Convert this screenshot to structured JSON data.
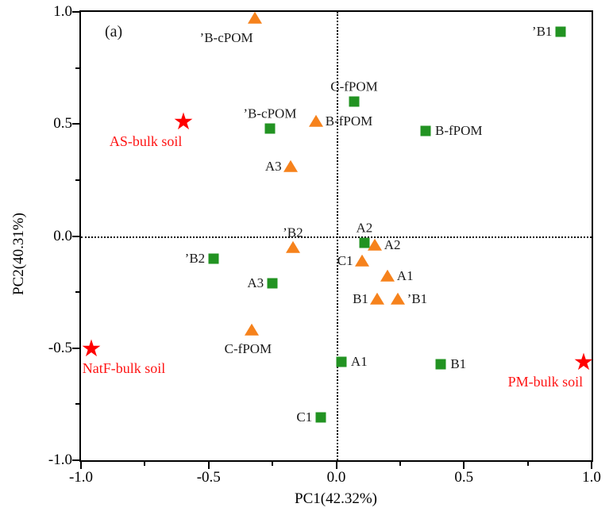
{
  "figure": {
    "panel_label": "(a)"
  },
  "colors": {
    "squares": "#229322",
    "triangles": "#f6821c",
    "stars": "#ff0000",
    "star_labels": "#ff1414",
    "point_labels": "#1a1a1a",
    "axis": "#000000"
  },
  "chart_data": {
    "type": "scatter",
    "title": "",
    "xlabel": "PC1(42.32%)",
    "ylabel": "PC2(40.31%)",
    "xlim": [
      -1.0,
      1.0
    ],
    "ylim": [
      -1.0,
      1.0
    ],
    "grid": false,
    "legend": "none",
    "x_ticks": {
      "values": [
        -1.0,
        -0.5,
        0.0,
        0.5,
        1.0
      ],
      "labels": [
        "-1.0",
        "-0.5",
        "0.0",
        "0.5",
        "1.0"
      ]
    },
    "y_ticks": {
      "values": [
        1.0,
        0.5,
        0.0,
        -0.5,
        -1.0
      ],
      "labels": [
        "1.0",
        "0.5",
        "0.0",
        "-0.5",
        "-1.0"
      ]
    },
    "x_minor_ticks": [
      -0.75,
      -0.25,
      0.25,
      0.75
    ],
    "y_minor_ticks": [
      -0.75,
      -0.25,
      0.25,
      0.75
    ],
    "reference_lines": {
      "vertical_x": 0.0,
      "horizontal_y": 0.0,
      "style": "dotted"
    },
    "series": [
      {
        "name": "green-squares",
        "marker": "square",
        "color": "#229322",
        "points": [
          {
            "x": 0.88,
            "y": 0.91,
            "label": "’B1",
            "label_pos": "left"
          },
          {
            "x": 0.07,
            "y": 0.6,
            "label": "C-fPOM",
            "label_pos": "above"
          },
          {
            "x": 0.35,
            "y": 0.47,
            "label": "B-fPOM",
            "label_pos": "right"
          },
          {
            "x": -0.26,
            "y": 0.48,
            "label": "’B-cPOM",
            "label_pos": "above"
          },
          {
            "x": 0.11,
            "y": -0.03,
            "label": "A2",
            "label_pos": "above"
          },
          {
            "x": -0.48,
            "y": -0.1,
            "label": "’B2",
            "label_pos": "left"
          },
          {
            "x": -0.25,
            "y": -0.21,
            "label": "A3",
            "label_pos": "left"
          },
          {
            "x": 0.02,
            "y": -0.56,
            "label": "A1",
            "label_pos": "right"
          },
          {
            "x": 0.41,
            "y": -0.57,
            "label": "B1",
            "label_pos": "right"
          },
          {
            "x": -0.06,
            "y": -0.81,
            "label": "C1",
            "label_pos": "left"
          }
        ]
      },
      {
        "name": "orange-triangles",
        "marker": "triangle",
        "color": "#f6821c",
        "points": [
          {
            "x": -0.32,
            "y": 0.97,
            "label": "’B-cPOM",
            "label_pos": "below-left"
          },
          {
            "x": -0.08,
            "y": 0.51,
            "label": "B-fPOM",
            "label_pos": "right"
          },
          {
            "x": -0.18,
            "y": 0.31,
            "label": "A3",
            "label_pos": "left"
          },
          {
            "x": -0.17,
            "y": -0.05,
            "label": "’B2",
            "label_pos": "above"
          },
          {
            "x": 0.15,
            "y": -0.04,
            "label": "A2",
            "label_pos": "right"
          },
          {
            "x": 0.1,
            "y": -0.11,
            "label": "C1",
            "label_pos": "left"
          },
          {
            "x": 0.2,
            "y": -0.18,
            "label": "A1",
            "label_pos": "right"
          },
          {
            "x": 0.16,
            "y": -0.28,
            "label": "B1",
            "label_pos": "left"
          },
          {
            "x": 0.24,
            "y": -0.28,
            "label": "’B1",
            "label_pos": "right"
          },
          {
            "x": -0.33,
            "y": -0.42,
            "label": "C-fPOM",
            "label_pos": "below"
          }
        ]
      },
      {
        "name": "red-stars-bulk-soil",
        "marker": "star",
        "color": "#ff0000",
        "label_color": "#ff1414",
        "points": [
          {
            "x": -0.6,
            "y": 0.51,
            "label": "AS-bulk soil",
            "label_pos": "below-left"
          },
          {
            "x": -0.96,
            "y": -0.5,
            "label": "NatF-bulk soil",
            "label_pos": "below-right"
          },
          {
            "x": 0.97,
            "y": -0.56,
            "label": "PM-bulk soil",
            "label_pos": "below-left"
          }
        ]
      }
    ]
  }
}
